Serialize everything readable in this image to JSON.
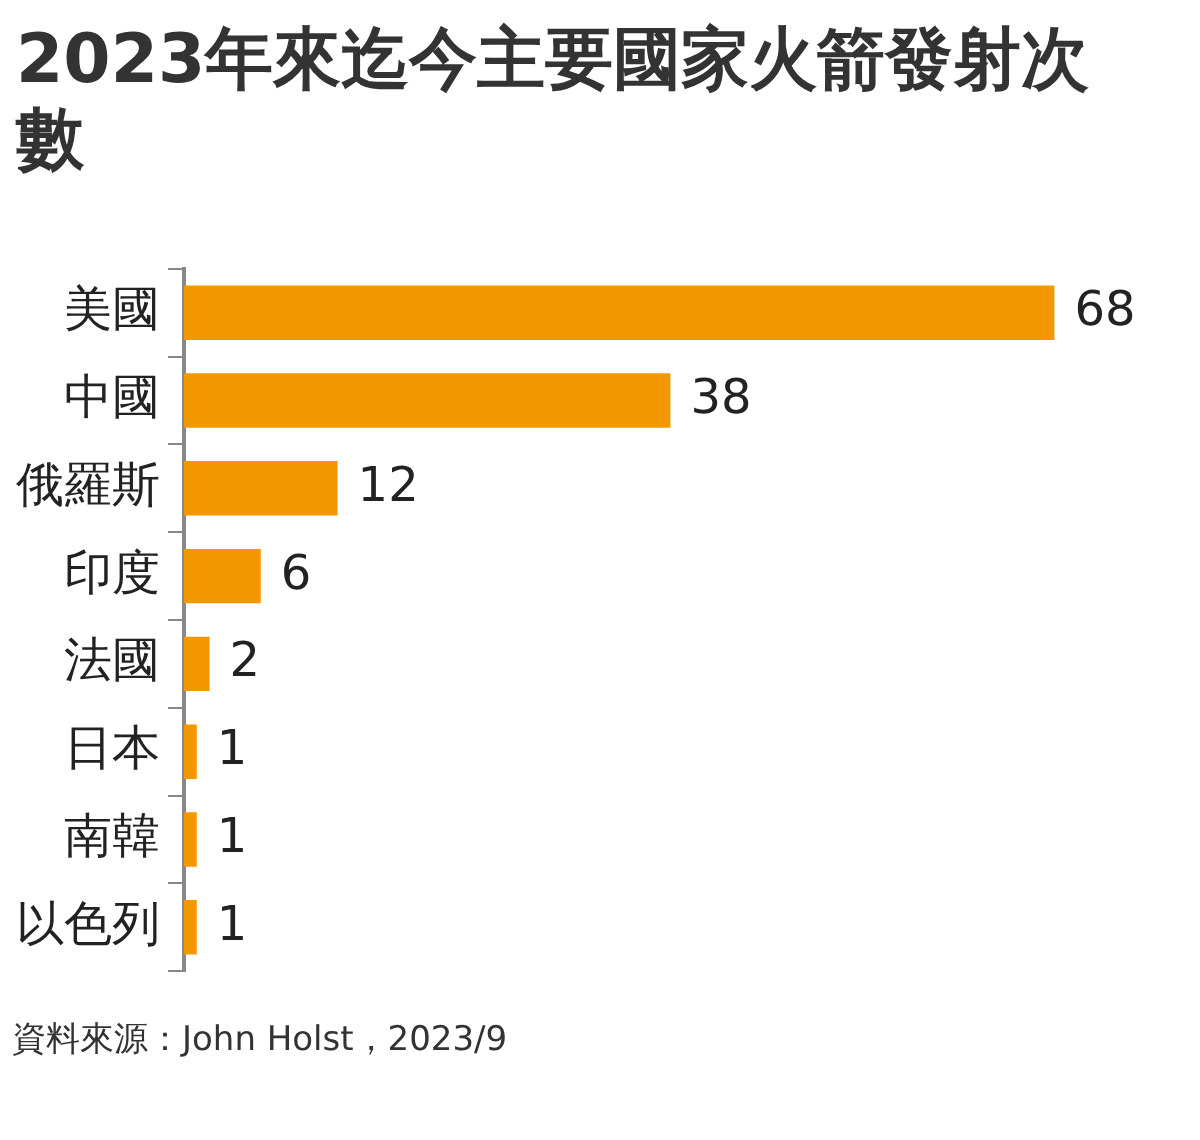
{
  "chart_data": {
    "type": "bar",
    "orientation": "horizontal",
    "title": "2023年來迄今主要國家火箭發射次數",
    "categories": [
      "美國",
      "中國",
      "俄羅斯",
      "印度",
      "法國",
      "日本",
      "南韓",
      "以色列"
    ],
    "values": [
      68,
      38,
      12,
      6,
      2,
      1,
      1,
      1
    ],
    "color": "#f39800",
    "tick_labels": "y",
    "legend": false,
    "data_labels": true,
    "annotations": [
      "資料來源：John Holst，2023/9"
    ]
  }
}
